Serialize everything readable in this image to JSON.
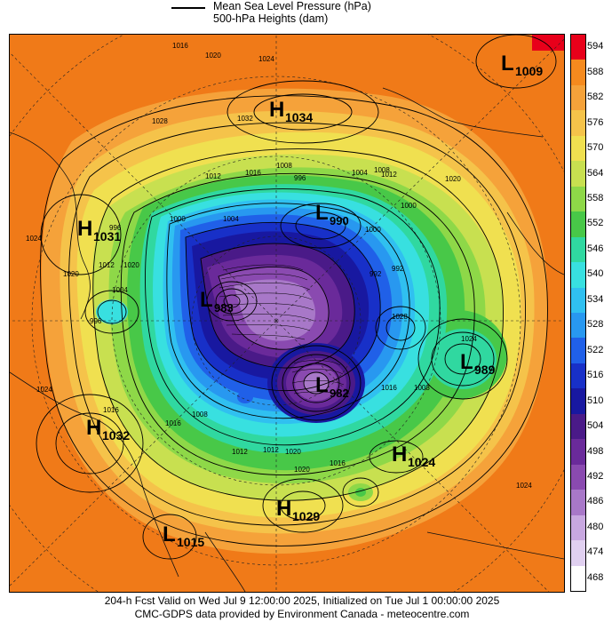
{
  "header": {
    "line1": "Mean Sea Level Pressure (hPa)",
    "line2": "500-hPa Heights (dam)"
  },
  "colorbar": {
    "levels": [
      "594",
      "588",
      "582",
      "576",
      "570",
      "564",
      "558",
      "552",
      "546",
      "540",
      "534",
      "528",
      "522",
      "516",
      "510",
      "504",
      "498",
      "492",
      "486",
      "480",
      "474",
      "468"
    ],
    "colors": [
      "#e8001a",
      "#f58a1e",
      "#f5a23a",
      "#f5c34a",
      "#f0e050",
      "#c8e050",
      "#8ed848",
      "#48c848",
      "#30d8a0",
      "#38e0e0",
      "#30c0f0",
      "#2898f0",
      "#2060e8",
      "#1830c8",
      "#1818a0",
      "#4a1a88",
      "#6a2a9a",
      "#8a4ab0",
      "#a878c8",
      "#c8a8e0",
      "#e0d0f0",
      "#ffffff"
    ]
  },
  "map": {
    "systems": [
      {
        "type": "H",
        "value": "1034",
        "name": "high-1034"
      },
      {
        "type": "L",
        "value": "1009",
        "name": "low-1009"
      },
      {
        "type": "H",
        "value": "1031",
        "name": "high-1031"
      },
      {
        "type": "L",
        "value": "990",
        "name": "low-990"
      },
      {
        "type": "L",
        "value": "983",
        "name": "low-983"
      },
      {
        "type": "L",
        "value": "989",
        "name": "low-989"
      },
      {
        "type": "L",
        "value": "982",
        "name": "low-982"
      },
      {
        "type": "H",
        "value": "1032",
        "name": "high-1032"
      },
      {
        "type": "H",
        "value": "1024",
        "name": "high-1024"
      },
      {
        "type": "H",
        "value": "1029",
        "name": "high-1029"
      },
      {
        "type": "L",
        "value": "1015",
        "name": "low-1015"
      }
    ],
    "isobar_labels": [
      "1016",
      "1020",
      "1024",
      "1028",
      "1032",
      "1012",
      "1016",
      "1008",
      "1004",
      "996",
      "1008",
      "1004",
      "1012",
      "1020",
      "1000",
      "992",
      "1000",
      "996",
      "1000",
      "1020",
      "1012",
      "1024",
      "1020",
      "1024",
      "1016",
      "1004",
      "996",
      "992",
      "1008",
      "1012",
      "1016",
      "1020",
      "1012",
      "1028",
      "1024",
      "1008",
      "1016",
      "1020",
      "1024",
      "1016"
    ]
  },
  "footer": {
    "line1": "204-h Fcst Valid on Wed Jul  9 12:00:00 2025, Initialized on Tue Jul  1 00:00:00 2025",
    "line2": "CMC-GDPS data provided by Environment Canada - meteocentre.com"
  }
}
